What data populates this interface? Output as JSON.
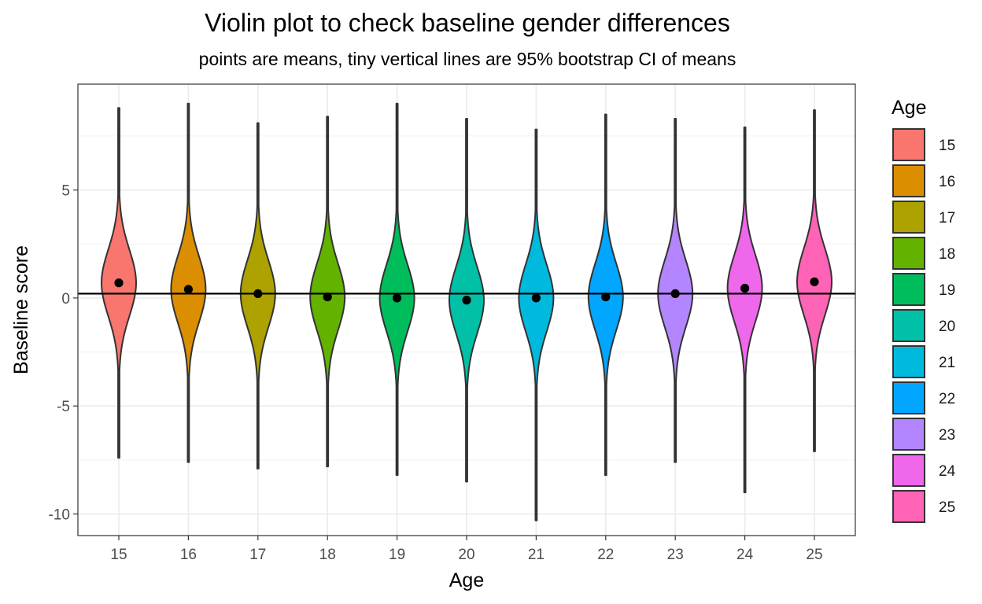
{
  "chart_data": {
    "type": "violin",
    "title": "Violin plot to check baseline gender differences",
    "subtitle": "points are means, tiny vertical lines are 95% bootstrap CI of means",
    "xlabel": "Age",
    "ylabel": "Baseline score",
    "ylim": [
      -11.0,
      9.9
    ],
    "y_ticks": [
      5,
      0,
      -5,
      -10
    ],
    "y_tick_labels": [
      "5",
      "0",
      "-5",
      "-10"
    ],
    "reference_line_y": 0.2,
    "legend": {
      "title": "Age",
      "position": "right"
    },
    "grid": true,
    "groups": [
      {
        "age": "15",
        "color": "#F8766D",
        "mean": 0.7,
        "min": -7.4,
        "max": 8.8,
        "mode": 0.7,
        "sd": 1.55
      },
      {
        "age": "16",
        "color": "#DB8E00",
        "mean": 0.4,
        "min": -7.6,
        "max": 9.0,
        "mode": 0.4,
        "sd": 1.55
      },
      {
        "age": "17",
        "color": "#AEA200",
        "mean": 0.2,
        "min": -7.9,
        "max": 8.1,
        "mode": 0.2,
        "sd": 1.55
      },
      {
        "age": "18",
        "color": "#64B200",
        "mean": 0.05,
        "min": -7.8,
        "max": 8.4,
        "mode": 0.05,
        "sd": 1.55
      },
      {
        "age": "19",
        "color": "#00BD5C",
        "mean": 0.0,
        "min": -8.2,
        "max": 9.0,
        "mode": 0.0,
        "sd": 1.55
      },
      {
        "age": "20",
        "color": "#00C1A7",
        "mean": -0.1,
        "min": -8.5,
        "max": 8.3,
        "mode": -0.1,
        "sd": 1.55
      },
      {
        "age": "21",
        "color": "#00BADE",
        "mean": 0.0,
        "min": -10.3,
        "max": 7.8,
        "mode": 0.0,
        "sd": 1.55
      },
      {
        "age": "22",
        "color": "#00A6FF",
        "mean": 0.05,
        "min": -8.2,
        "max": 8.5,
        "mode": 0.05,
        "sd": 1.55
      },
      {
        "age": "23",
        "color": "#B385FF",
        "mean": 0.2,
        "min": -7.6,
        "max": 8.3,
        "mode": 0.2,
        "sd": 1.55
      },
      {
        "age": "24",
        "color": "#EF67EB",
        "mean": 0.45,
        "min": -9.0,
        "max": 7.9,
        "mode": 0.45,
        "sd": 1.55
      },
      {
        "age": "25",
        "color": "#FF63B6",
        "mean": 0.75,
        "min": -7.1,
        "max": 8.7,
        "mode": 0.75,
        "sd": 1.55
      }
    ]
  }
}
